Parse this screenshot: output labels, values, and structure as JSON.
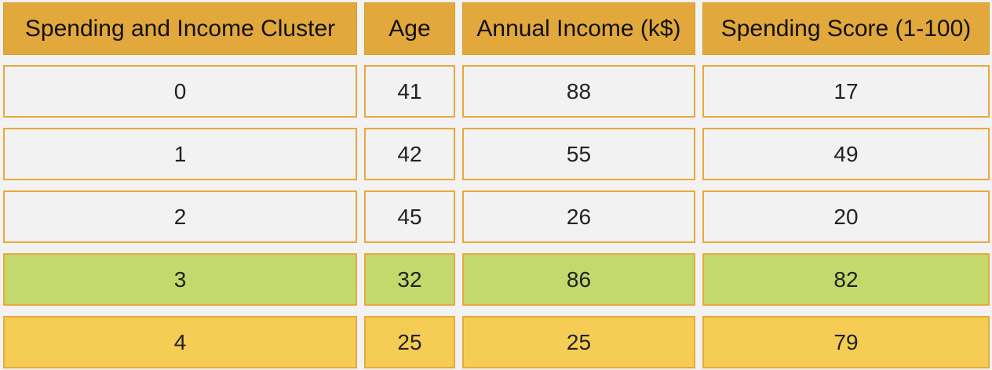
{
  "colors": {
    "header": "#e2a83c",
    "default_row": "#f2f2f2",
    "highlight_green": "#c4d96b",
    "highlight_yellow": "#f5cd55",
    "border": "#e8a93a"
  },
  "chart_data": {
    "type": "table",
    "columns": [
      "Spending and Income Cluster",
      "Age",
      "Annual Income (k$)",
      "Spending Score (1-100)"
    ],
    "rows": [
      [
        "0",
        "41",
        "88",
        "17"
      ],
      [
        "1",
        "42",
        "55",
        "49"
      ],
      [
        "2",
        "45",
        "26",
        "20"
      ],
      [
        "3",
        "32",
        "86",
        "82"
      ],
      [
        "4",
        "25",
        "25",
        "79"
      ]
    ],
    "row_colors": [
      "#f2f2f2",
      "#f2f2f2",
      "#f2f2f2",
      "#c4d96b",
      "#f5cd55"
    ]
  }
}
